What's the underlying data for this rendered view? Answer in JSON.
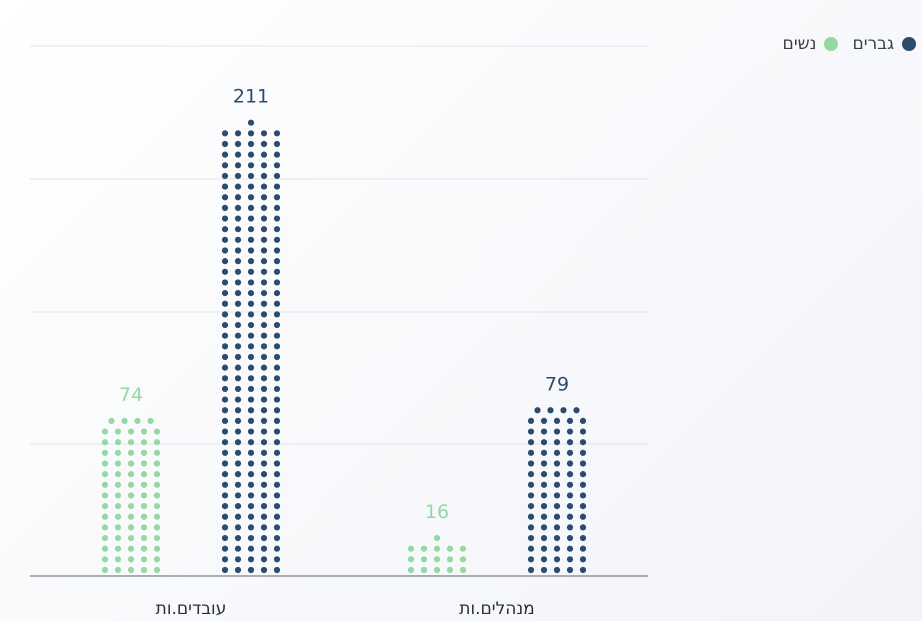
{
  "chart_data": {
    "type": "bar",
    "style": "dot-stacked (waffle columns)",
    "categories": [
      "עובדים.ות",
      "מנהלים.ות"
    ],
    "series": [
      {
        "name": "נשים",
        "color": "#95d8a1",
        "values": [
          74,
          16
        ]
      },
      {
        "name": "גברים",
        "color": "#2c4c6e",
        "values": [
          211,
          79
        ]
      }
    ],
    "ylim": [
      0,
      211
    ],
    "grid": true,
    "legend_position": "top-right",
    "direction": "rtl"
  },
  "legend": {
    "items": [
      {
        "label": "גברים",
        "color": "#2c4c6e"
      },
      {
        "label": "נשים",
        "color": "#95d8a1"
      }
    ]
  }
}
